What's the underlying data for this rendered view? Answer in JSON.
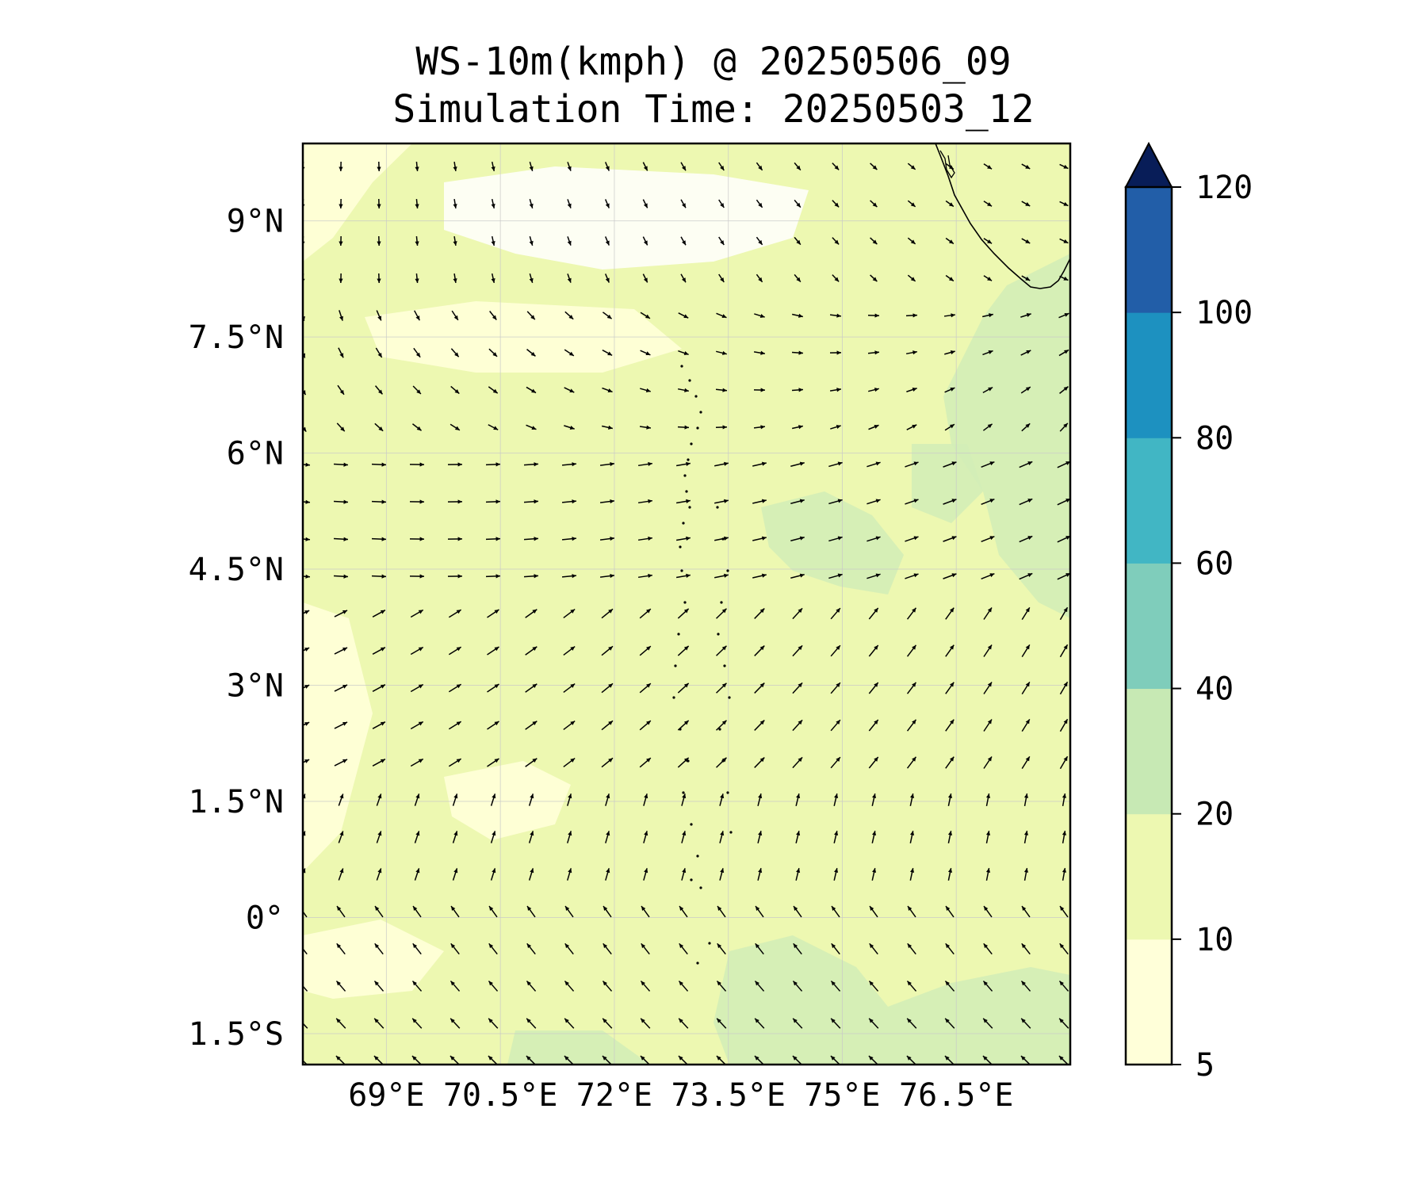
{
  "title": "WS-10m(kmph) @ 20250506_09",
  "subtitle": "Simulation Time: 20250503_12",
  "map": {
    "lon_range": [
      67.9,
      78.0
    ],
    "lat_range": [
      -1.9,
      10.0
    ],
    "lat_ticks": [
      {
        "value": 9.0,
        "label": "9°N"
      },
      {
        "value": 7.5,
        "label": "7.5°N"
      },
      {
        "value": 6.0,
        "label": "6°N"
      },
      {
        "value": 4.5,
        "label": "4.5°N"
      },
      {
        "value": 3.0,
        "label": "3°N"
      },
      {
        "value": 1.5,
        "label": "1.5°N"
      },
      {
        "value": 0.0,
        "label": "0°"
      },
      {
        "value": -1.5,
        "label": "1.5°S"
      }
    ],
    "lon_ticks": [
      {
        "value": 69.0,
        "label": "69°E"
      },
      {
        "value": 70.5,
        "label": "70.5°E"
      },
      {
        "value": 72.0,
        "label": "72°E"
      },
      {
        "value": 73.5,
        "label": "73.5°E"
      },
      {
        "value": 75.0,
        "label": "75°E"
      },
      {
        "value": 76.5,
        "label": "76.5°E"
      }
    ],
    "grid": true
  },
  "colorbar": {
    "levels": [
      5,
      10,
      20,
      40,
      60,
      80,
      100,
      120
    ],
    "labels": [
      "5",
      "10",
      "20",
      "40",
      "60",
      "80",
      "100",
      "120"
    ],
    "colors": [
      "#ffffd9",
      "#edf8b1",
      "#c7e9b4",
      "#7fcdbb",
      "#41b6c4",
      "#1d91c0",
      "#225ea8",
      "#0c2c84"
    ],
    "extend_color": "#081d58",
    "extend": "max"
  },
  "colors": {
    "field_base": "#edf8b1",
    "field_calm": "#ffffd9",
    "field_light": "#f5fbd0",
    "field_moderate": "#d3edb7",
    "arrow": "#000000",
    "coastline": "#000000"
  }
}
